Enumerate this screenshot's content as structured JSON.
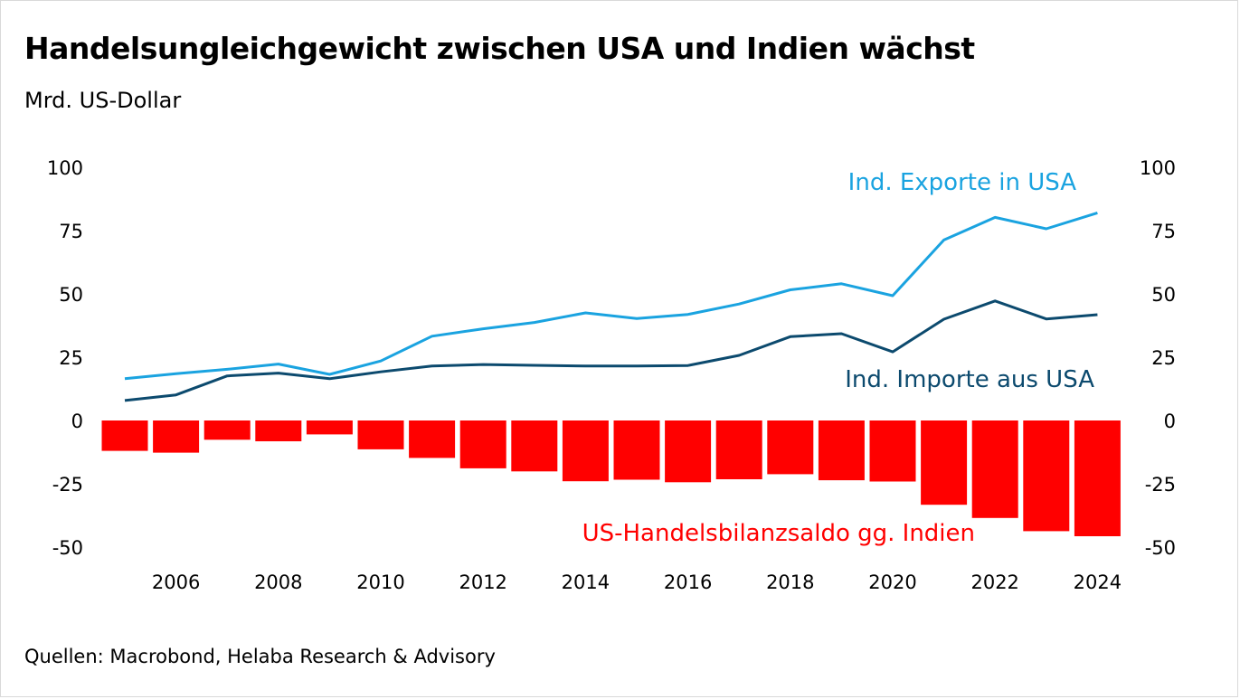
{
  "title": "Handelsungleichgewicht zwischen USA und Indien wächst",
  "subtitle": "Mrd. US-Dollar",
  "source": "Quellen: Macrobond, Helaba Research & Advisory",
  "colors": {
    "exports": "#1aa3e0",
    "imports": "#0c4a6e",
    "balance": "#ff0000",
    "text": "#000000"
  },
  "chart_data": {
    "type": "bar",
    "title": "Handelsungleichgewicht zwischen USA und Indien wächst",
    "ylabel": "Mrd. US-Dollar",
    "ylim": [
      -50,
      100
    ],
    "yticks": [
      "100",
      "75",
      "50",
      "25",
      "0",
      "-25",
      "-50"
    ],
    "ytick_values": [
      100,
      75,
      50,
      25,
      0,
      -25,
      -50
    ],
    "xtick_labels": [
      "2006",
      "2008",
      "2010",
      "2012",
      "2014",
      "2016",
      "2018",
      "2020",
      "2022",
      "2024"
    ],
    "categories": [
      2005,
      2006,
      2007,
      2008,
      2009,
      2010,
      2011,
      2012,
      2013,
      2014,
      2015,
      2016,
      2017,
      2018,
      2019,
      2020,
      2021,
      2022,
      2023,
      2024
    ],
    "series": [
      {
        "name": "Ind. Exporte in USA",
        "type": "line",
        "values": [
          16.5,
          18.5,
          20.2,
          22.3,
          18.2,
          23.5,
          33.3,
          36.2,
          38.7,
          42.5,
          40.3,
          41.9,
          46.0,
          51.6,
          54.0,
          49.3,
          71.3,
          80.2,
          75.7,
          82.0
        ]
      },
      {
        "name": "Ind. Importe aus USA",
        "type": "line",
        "values": [
          7.9,
          10.1,
          17.6,
          18.7,
          16.5,
          19.2,
          21.5,
          22.1,
          21.8,
          21.5,
          21.5,
          21.7,
          25.7,
          33.1,
          34.3,
          27.1,
          40.0,
          47.2,
          40.1,
          41.8
        ]
      },
      {
        "name": "US-Handelsbilanzsaldo gg. Indien",
        "type": "bar",
        "values": [
          -12.0,
          -12.7,
          -7.6,
          -8.2,
          -5.5,
          -11.4,
          -14.8,
          -18.9,
          -20.1,
          -24.0,
          -23.4,
          -24.4,
          -23.2,
          -21.2,
          -23.6,
          -24.1,
          -33.3,
          -38.5,
          -43.7,
          -45.7
        ]
      }
    ],
    "annotations": [
      "Ind. Exporte in USA",
      "Ind. Importe aus USA",
      "US-Handelsbilanzsaldo gg. Indien"
    ],
    "grid": false,
    "secondary_axis": "mirrored"
  }
}
